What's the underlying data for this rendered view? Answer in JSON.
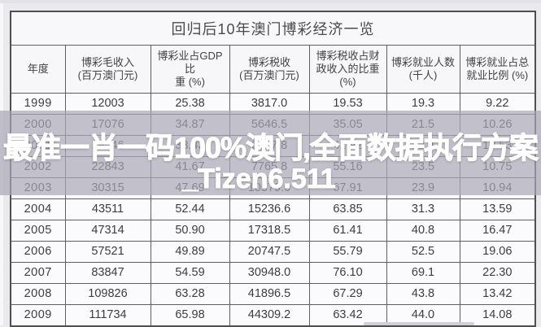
{
  "table": {
    "title": "回归后10年澳门博彩经济一览"
  },
  "watermark": {
    "line1": "最准一肖一码100%澳门,全面数据执行方案",
    "line2": "_Tizen6.511",
    "text_color": "#ffffff",
    "band_color": "rgba(170,166,181,0.70)"
  },
  "colors": {
    "page_background": "#eae9ec",
    "table_background": "#f8f7f9",
    "border": "#5f5f5f",
    "text": "#3d3d3d",
    "dimmed_text": "#8a8793"
  },
  "chart_data": {
    "type": "table",
    "title": "回归后10年澳门博彩经济一览",
    "columns": [
      "年度",
      "博彩毛收入\n(百万澳门元)",
      "博彩业占GDP比\n重 (%)",
      "博彩税收\n(百万澳门元)",
      "博彩税收占财\n政收入的比重\n(%)",
      "博彩就业人数\n(千人)",
      "博彩就业占总\n就业比例 (%)"
    ],
    "rows": [
      [
        "1999",
        "12003",
        "25.38",
        "3817.0",
        "19.53",
        "19.3",
        "9.22"
      ],
      [
        "2000",
        "17076",
        "34.87",
        "5646.5",
        "35.05",
        "21.5",
        "10.26"
      ],
      [
        "2001",
        "19546",
        "38.43",
        "6287.8",
        "42.92",
        "22.4",
        "10.53"
      ],
      [
        "2002",
        "22843",
        "41.67",
        "7765.8",
        "55.16",
        "23.5",
        "10.75"
      ],
      [
        "2003",
        "30315",
        "47.69",
        "10579.0",
        "67.91",
        "23.9",
        "10.94"
      ],
      [
        "2004",
        "43511",
        "52.44",
        "15236.6",
        "63.85",
        "31.3",
        "13.59"
      ],
      [
        "2005",
        "47314",
        "50.90",
        "17318.5",
        "61.41",
        "40.8",
        "16.47"
      ],
      [
        "2006",
        "57521",
        "49.89",
        "20747.5",
        "55.79",
        "52.5",
        "19.06"
      ],
      [
        "2007",
        "83847",
        "54.59",
        "30948.0",
        "76.10",
        "69.1",
        "22.30"
      ],
      [
        "2008",
        "109826",
        "63.28",
        "41896.5",
        "67.29",
        "43.8",
        "13.42"
      ],
      [
        "2009",
        "111734",
        "65.98",
        "44309.2",
        "63.42",
        "44.0",
        "14.08"
      ]
    ],
    "layout_hints": {
      "dimmed_row_years": [
        "2000",
        "2001",
        "2002",
        "2003"
      ],
      "grid": true,
      "legend": "none"
    }
  }
}
